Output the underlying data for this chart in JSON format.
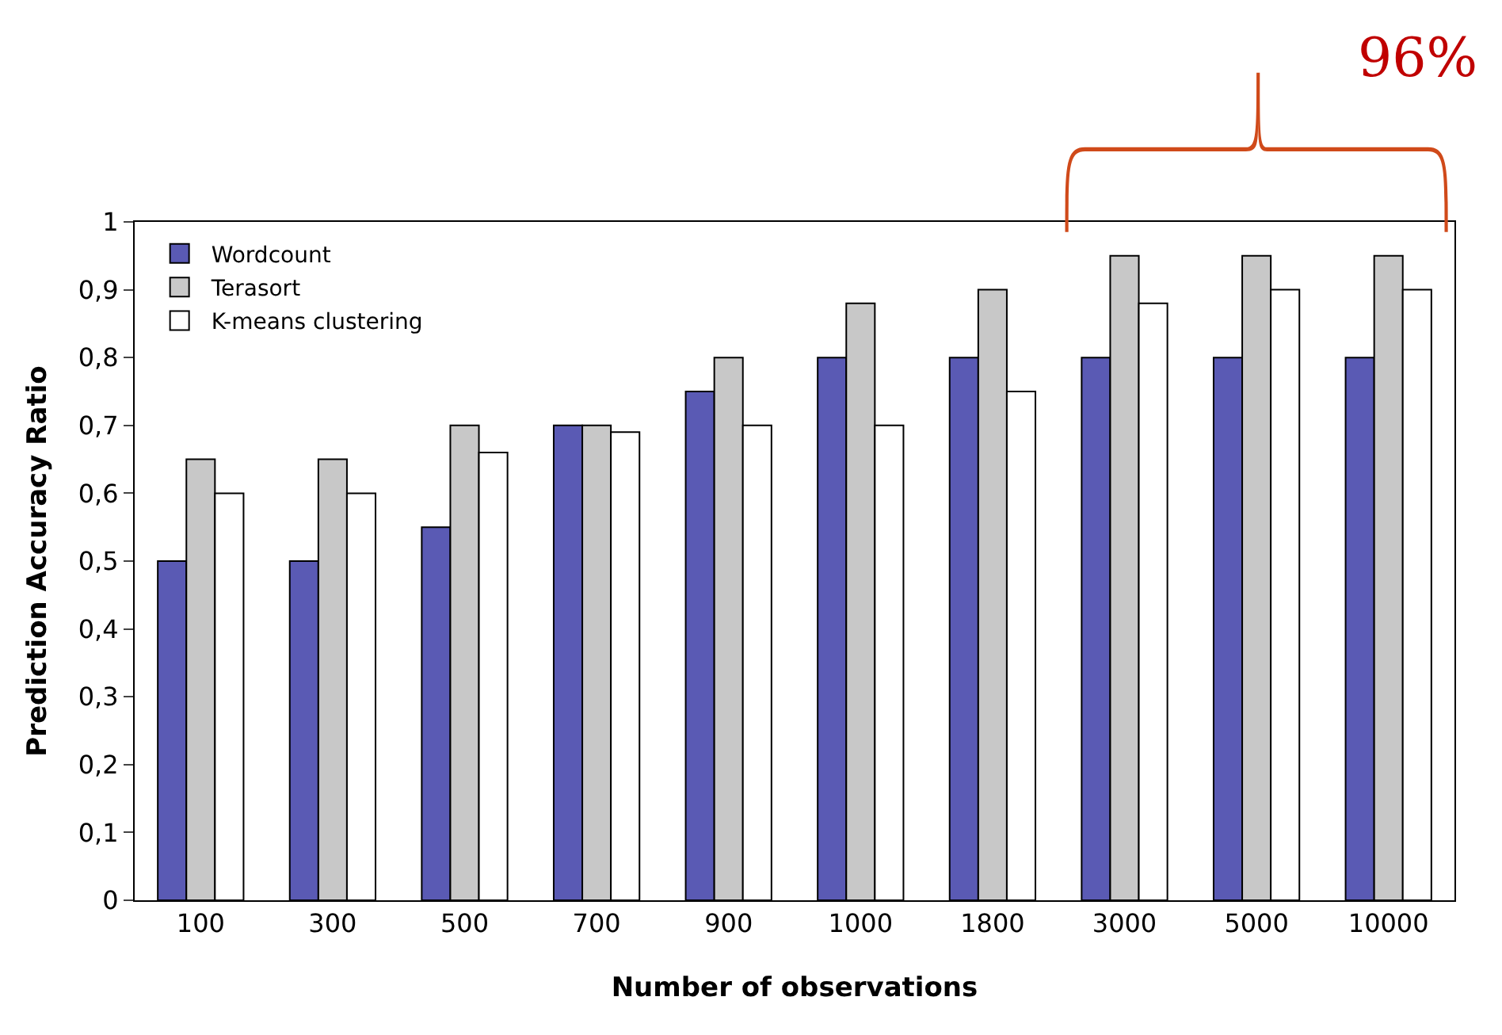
{
  "chart_data": {
    "type": "bar",
    "xlabel": "Number of observations",
    "ylabel": "Prediction Accuracy Ratio",
    "categories": [
      "100",
      "300",
      "500",
      "700",
      "900",
      "1000",
      "1800",
      "3000",
      "5000",
      "10000"
    ],
    "series": [
      {
        "name": "Wordcount",
        "color": "#5a5ab4",
        "values": [
          0.5,
          0.5,
          0.55,
          0.7,
          0.75,
          0.8,
          0.8,
          0.8,
          0.8,
          0.8
        ]
      },
      {
        "name": "Terasort",
        "color": "#c8c8c8",
        "values": [
          0.65,
          0.65,
          0.7,
          0.7,
          0.8,
          0.88,
          0.9,
          0.95,
          0.95,
          0.95
        ]
      },
      {
        "name": "K-means clustering",
        "color": "#ffffff",
        "values": [
          0.6,
          0.6,
          0.66,
          0.69,
          0.7,
          0.7,
          0.75,
          0.88,
          0.9,
          0.9
        ]
      }
    ],
    "ylim": [
      0,
      1
    ],
    "yticks": [
      0,
      {
        "value": 0.1,
        "label": "0,1"
      },
      {
        "value": 0.2,
        "label": "0,2"
      },
      {
        "value": 0.3,
        "label": "0,3"
      },
      {
        "value": 0.4,
        "label": "0,4"
      },
      {
        "value": 0.5,
        "label": "0,5"
      },
      {
        "value": 0.6,
        "label": "0,6"
      },
      {
        "value": 0.7,
        "label": "0,7"
      },
      {
        "value": 0.8,
        "label": "0,8"
      },
      {
        "value": 0.9,
        "label": "0,9"
      },
      1
    ],
    "legend": "top left",
    "annotations": [
      "96%"
    ]
  }
}
